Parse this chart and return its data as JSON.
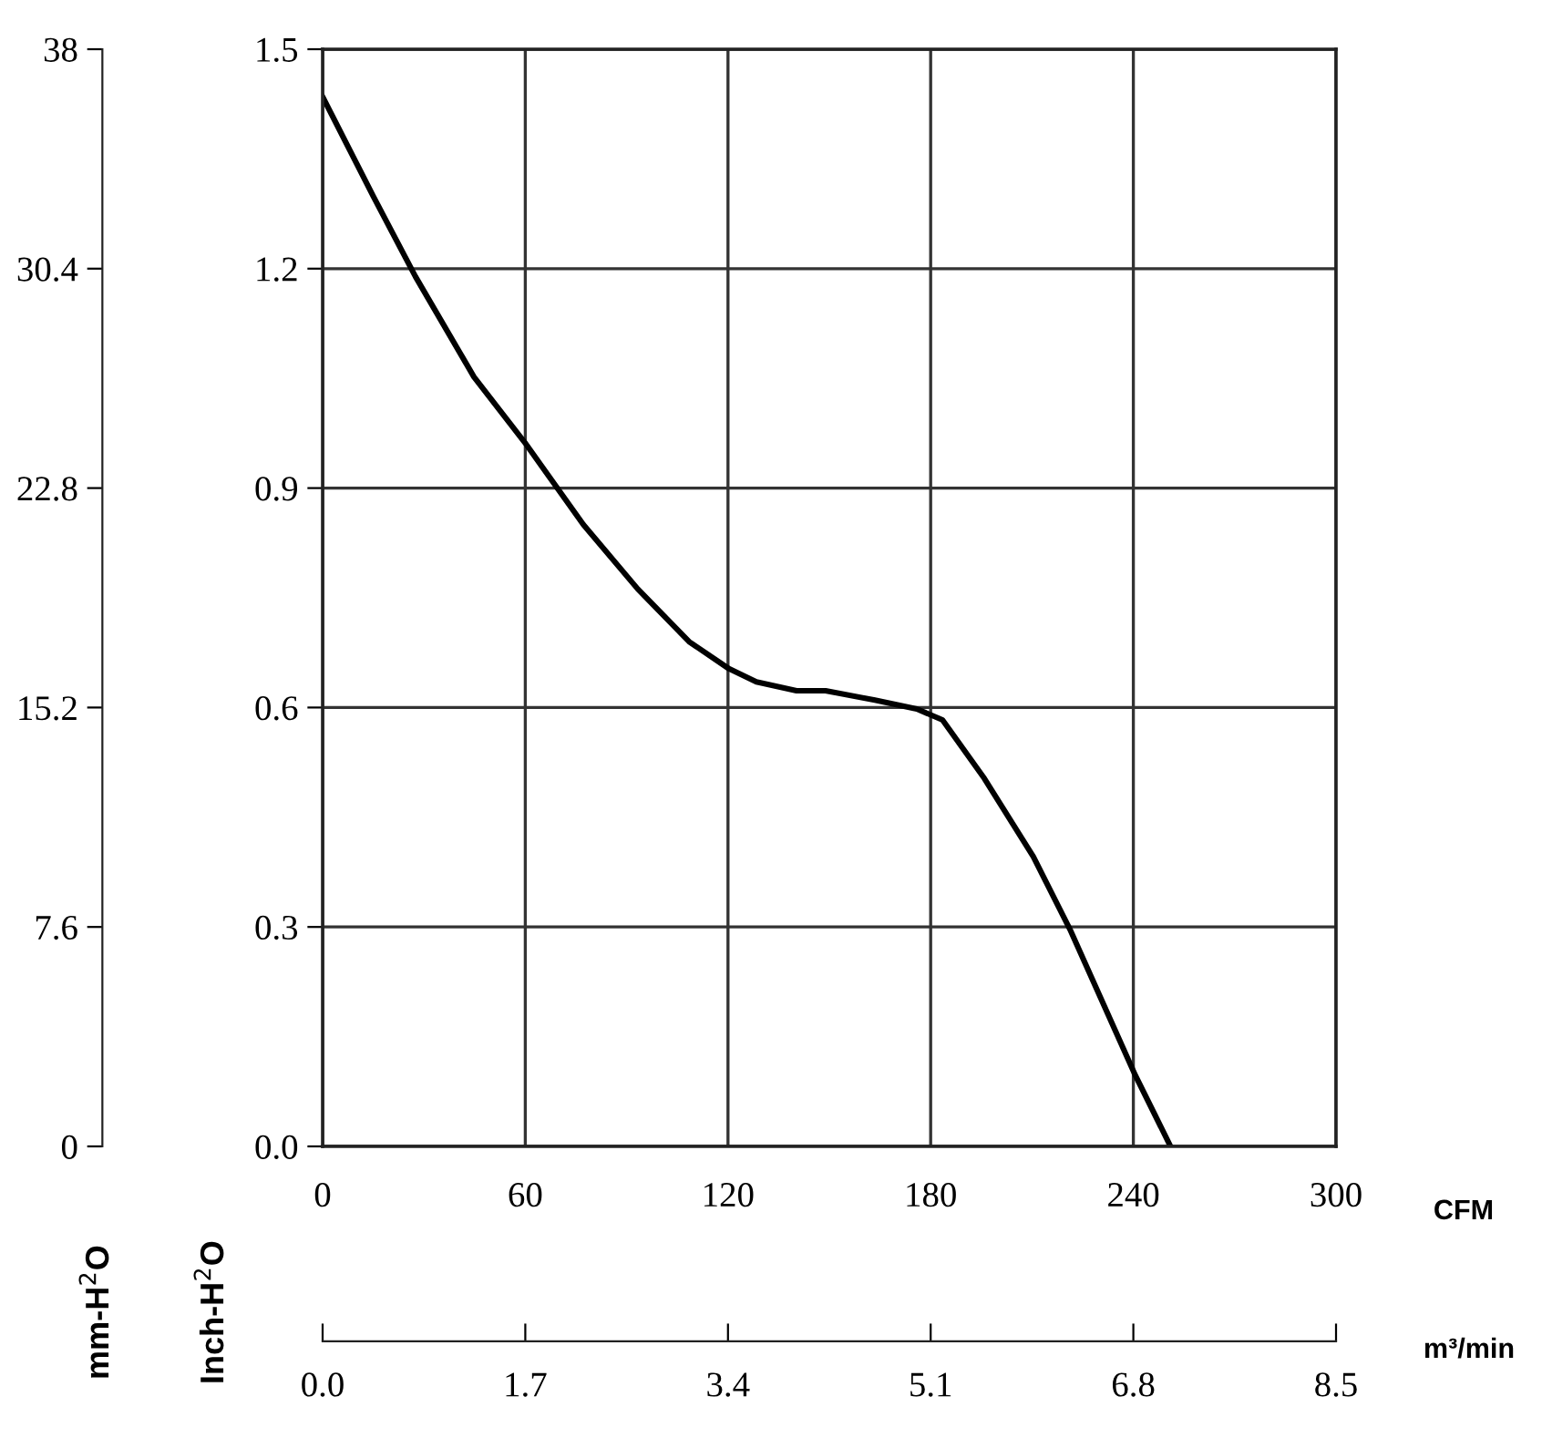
{
  "chart_data": {
    "type": "line",
    "xlabel": "CFM",
    "ylabel": "Inch-H$^{2}$O",
    "y2label": "mm-H$^{2}$O",
    "x2label": "m³/min",
    "x": [
      0,
      15.1,
      27.5,
      44.8,
      59.9,
      77.2,
      93.3,
      108.5,
      120.3,
      128.4,
      140.3,
      148.9,
      163.5,
      175.9,
      183.5,
      195.9,
      210.4,
      221.2,
      240.6,
      251
    ],
    "series": [
      {
        "color": "#000000",
        "values": [
          1.435,
          1.298,
          1.189,
          1.052,
          0.962,
          0.85,
          0.762,
          0.69,
          0.653,
          0.635,
          0.623,
          0.623,
          0.61,
          0.598,
          0.583,
          0.503,
          0.396,
          0.297,
          0.097,
          0.0
        ]
      }
    ],
    "xlim": [
      0,
      300
    ],
    "xticks": [
      0,
      60,
      120,
      180,
      240,
      300
    ],
    "ylim": [
      0,
      1.5
    ],
    "yticks": [
      {
        "value": 0,
        "label": "0.0"
      },
      0.3,
      0.6,
      0.9,
      1.2,
      1.5
    ],
    "y2lim": [
      0,
      38
    ],
    "y2ticks": [
      0,
      7.6,
      15.2,
      22.8,
      30.4,
      38
    ],
    "x2lim": [
      0,
      8.5
    ],
    "x2ticks": [
      {
        "value": 0,
        "label": "0.0"
      },
      1.7,
      3.4,
      5.1,
      6.8,
      8.5
    ],
    "grid": true,
    "marker": "none",
    "line_style": "solid",
    "legend": false
  }
}
